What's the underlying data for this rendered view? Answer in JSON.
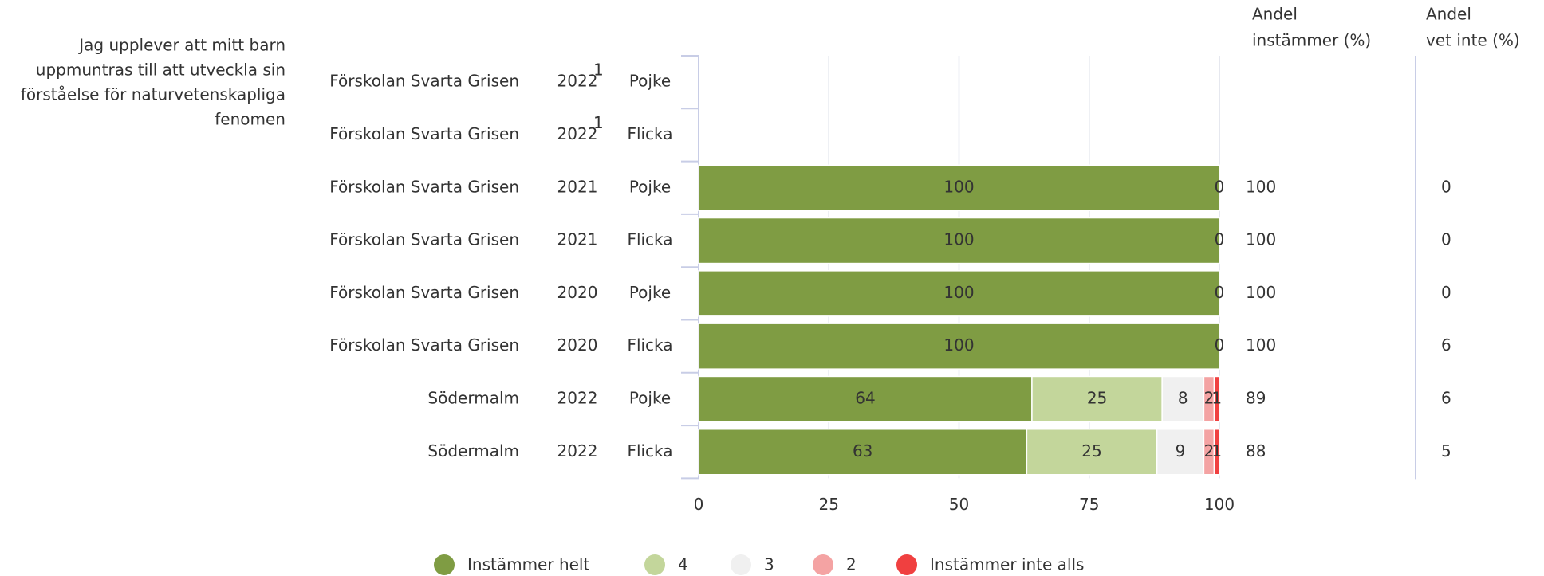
{
  "chart_data": {
    "type": "stacked-bar-horizontal",
    "question": [
      "Jag upplever att mitt barn",
      "uppmuntras till att utveckla sin",
      "förståelse för naturvetenskapliga",
      "fenomen"
    ],
    "rows": [
      {
        "unit": "Förskolan Svarta Grisen",
        "year": "2022",
        "note": "1",
        "gender": "Pojke"
      },
      {
        "unit": "Förskolan Svarta Grisen",
        "year": "2022",
        "note": "1",
        "gender": "Flicka"
      },
      {
        "unit": "Förskolan Svarta Grisen",
        "year": "2021",
        "gender": "Pojke"
      },
      {
        "unit": "Förskolan Svarta Grisen",
        "year": "2021",
        "gender": "Flicka"
      },
      {
        "unit": "Förskolan Svarta Grisen",
        "year": "2020",
        "gender": "Pojke"
      },
      {
        "unit": "Förskolan Svarta Grisen",
        "year": "2020",
        "gender": "Flicka"
      },
      {
        "unit": "Södermalm",
        "year": "2022",
        "gender": "Pojke"
      },
      {
        "unit": "Södermalm",
        "year": "2022",
        "gender": "Flicka"
      }
    ],
    "series": [
      {
        "name": "Instämmer helt",
        "color": "#7f9c43",
        "text_color": "#ffffff",
        "values": [
          null,
          null,
          100,
          100,
          100,
          100,
          64,
          63
        ]
      },
      {
        "name": "4",
        "color": "#c3d69b",
        "text_color": "#ffffff",
        "values": [
          null,
          null,
          null,
          null,
          null,
          null,
          25,
          25
        ]
      },
      {
        "name": "3",
        "color": "#f0f0f0",
        "text_color": "#000000",
        "values": [
          null,
          null,
          null,
          null,
          null,
          null,
          8,
          9
        ]
      },
      {
        "name": "2",
        "color": "#f4a3a3",
        "text_color": "#000000",
        "values": [
          null,
          null,
          null,
          null,
          null,
          null,
          2,
          2
        ]
      },
      {
        "name": "Instämmer inte alls",
        "color": "#f04040",
        "text_color": "#ffffff",
        "values": [
          null,
          null,
          0,
          0,
          0,
          0,
          1,
          1
        ]
      }
    ],
    "xlim": [
      0,
      100
    ],
    "xticks": [
      0,
      25,
      50,
      75,
      100
    ],
    "grid": true,
    "columns": [
      {
        "header": [
          "Andel",
          "instämmer (%)"
        ],
        "values": [
          null,
          null,
          100,
          100,
          100,
          100,
          89,
          88
        ]
      },
      {
        "header": [
          "Andel",
          "vet inte (%)"
        ],
        "values": [
          null,
          null,
          0,
          0,
          0,
          6,
          6,
          5
        ]
      }
    ]
  }
}
